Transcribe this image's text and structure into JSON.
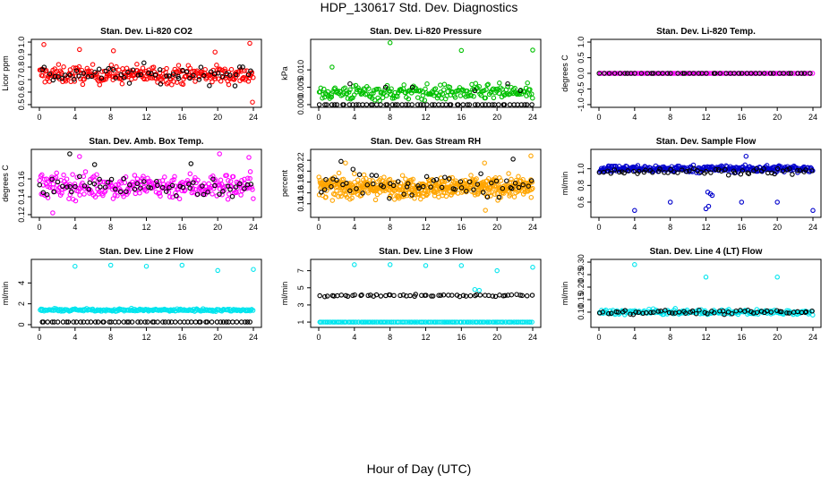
{
  "figure": {
    "title": "HDP_130617  Std. Dev. Diagnostics",
    "xlabel": "Hour of Day (UTC)"
  },
  "chart_data": [
    {
      "type": "scatter",
      "title": "Stan. Dev. Li-820 CO2",
      "ylabel": "Licor ppm",
      "xlim": [
        0,
        24
      ],
      "ylim": [
        0.5,
        1.0
      ],
      "xticks": [
        "0",
        "4",
        "8",
        "12",
        "16",
        "20",
        "24"
      ],
      "yticks": [
        "0.5",
        "0.6",
        "0.7",
        "0.8",
        "0.9",
        "1.0"
      ],
      "series": [
        {
          "color": "#ff0000",
          "baseline": 0.74,
          "spread": 0.07,
          "n": 260,
          "outliers": [
            [
              0.5,
              0.98
            ],
            [
              23.6,
              0.99
            ],
            [
              4.5,
              0.94
            ],
            [
              8.3,
              0.93
            ],
            [
              19.7,
              0.92
            ],
            [
              23.9,
              0.52
            ]
          ]
        },
        {
          "color": "#000000",
          "baseline": 0.74,
          "spread": 0.07,
          "n": 60,
          "outliers": []
        }
      ]
    },
    {
      "type": "scatter",
      "title": "Stan. Dev. Li-820 Pressure",
      "ylabel": "kPa",
      "xlim": [
        0,
        24
      ],
      "ylim": [
        0,
        0.018
      ],
      "xticks": [
        "0",
        "4",
        "8",
        "12",
        "16",
        "20",
        "24"
      ],
      "yticks": [
        "0.000",
        "0.005",
        "0.010"
      ],
      "series": [
        {
          "color": "#00c000",
          "baseline": 0.0035,
          "spread": 0.0022,
          "n": 230,
          "outliers": [
            [
              8.0,
              0.0178
            ],
            [
              16.0,
              0.0156
            ],
            [
              24.0,
              0.0157
            ],
            [
              1.5,
              0.0108
            ]
          ]
        },
        {
          "color": "#000000",
          "baseline": 0.0,
          "spread": 0.0,
          "n": 60,
          "outliers": [
            [
              3.5,
              0.006
            ],
            [
              7.5,
              0.005
            ],
            [
              10.5,
              0.005
            ],
            [
              17.5,
              0.004
            ],
            [
              21.2,
              0.006
            ],
            [
              22.6,
              0.004
            ]
          ]
        }
      ]
    },
    {
      "type": "scatter",
      "title": "Stan. Dev. Li-820 Temp.",
      "ylabel": "degrees C",
      "xlim": [
        0,
        24
      ],
      "ylim": [
        -1.0,
        1.0
      ],
      "xticks": [
        "0",
        "4",
        "8",
        "12",
        "16",
        "20",
        "24"
      ],
      "yticks": [
        "-1.0",
        "-0.5",
        "0.0",
        "0.5",
        "1.0"
      ],
      "series": [
        {
          "color": "#ff00ff",
          "baseline": 0.0,
          "spread": 0.0,
          "n": 120,
          "outliers": []
        },
        {
          "color": "#000000",
          "baseline": 0.0,
          "spread": 0.0,
          "n": 48,
          "outliers": []
        }
      ]
    },
    {
      "type": "scatter",
      "title": "Stan. Dev. Amb. Box Temp.",
      "ylabel": "degrees C",
      "xlim": [
        0,
        24
      ],
      "ylim": [
        0.12,
        0.19
      ],
      "xticks": [
        "0",
        "4",
        "8",
        "12",
        "16",
        "20",
        "24"
      ],
      "yticks": [
        "0.12",
        "0.14",
        "0.16"
      ],
      "series": [
        {
          "color": "#ff00ff",
          "baseline": 0.152,
          "spread": 0.014,
          "n": 280,
          "outliers": [
            [
              20.2,
              0.188
            ],
            [
              23.5,
              0.184
            ],
            [
              1.5,
              0.122
            ],
            [
              4.5,
              0.185
            ]
          ]
        },
        {
          "color": "#000000",
          "baseline": 0.152,
          "spread": 0.012,
          "n": 60,
          "outliers": [
            [
              3.4,
              0.188
            ],
            [
              6.2,
              0.176
            ],
            [
              17.0,
              0.177
            ]
          ]
        }
      ]
    },
    {
      "type": "scatter",
      "title": "Stan. Dev. Gas Stream RH",
      "ylabel": "percent",
      "xlim": [
        0,
        24
      ],
      "ylim": [
        0.12,
        0.235
      ],
      "xticks": [
        "0",
        "4",
        "8",
        "12",
        "16",
        "20",
        "24"
      ],
      "yticks": [
        "0.14",
        "0.16",
        "0.18",
        "0.20",
        "0.22"
      ],
      "series": [
        {
          "color": "#ffa500",
          "baseline": 0.17,
          "spread": 0.018,
          "n": 520,
          "outliers": [
            [
              23.8,
              0.228
            ],
            [
              3.0,
              0.215
            ],
            [
              18.6,
              0.215
            ],
            [
              18.7,
              0.128
            ]
          ]
        },
        {
          "color": "#000000",
          "baseline": 0.175,
          "spread": 0.02,
          "n": 60,
          "outliers": [
            [
              2.5,
              0.218
            ],
            [
              21.8,
              0.222
            ]
          ]
        }
      ]
    },
    {
      "type": "scatter",
      "title": "Stan. Dev. Sample Flow",
      "ylabel": "ml/min",
      "xlim": [
        0,
        24
      ],
      "ylim": [
        0.45,
        1.2
      ],
      "xticks": [
        "0",
        "4",
        "8",
        "12",
        "16",
        "20",
        "24"
      ],
      "yticks": [
        "0.6",
        "0.8",
        "1.0"
      ],
      "series": [
        {
          "color": "#0000cc",
          "baseline": 1.0,
          "spread": 0.04,
          "n": 300,
          "outliers": [
            [
              4.0,
              0.5
            ],
            [
              8.0,
              0.6
            ],
            [
              12.0,
              0.52
            ],
            [
              12.3,
              0.55
            ],
            [
              12.5,
              0.7
            ],
            [
              12.7,
              0.68
            ],
            [
              16.0,
              0.6
            ],
            [
              16.5,
              1.15
            ],
            [
              20.0,
              0.6
            ],
            [
              24.0,
              0.5
            ],
            [
              12.2,
              0.72
            ]
          ]
        },
        {
          "color": "#000000",
          "baseline": 0.97,
          "spread": 0.035,
          "n": 60,
          "outliers": []
        }
      ]
    },
    {
      "type": "scatter",
      "title": "Stan. Dev. Line 2 Flow",
      "ylabel": "ml/min",
      "xlim": [
        0,
        24
      ],
      "ylim": [
        0,
        6.0
      ],
      "xticks": [
        "0",
        "4",
        "8",
        "12",
        "16",
        "20",
        "24"
      ],
      "yticks": [
        "0",
        "2",
        "4"
      ],
      "series": [
        {
          "color": "#00e5ee",
          "baseline": 1.4,
          "spread": 0.12,
          "n": 220,
          "outliers": [
            [
              4.0,
              5.6
            ],
            [
              8.0,
              5.7
            ],
            [
              12.0,
              5.6
            ],
            [
              16.0,
              5.7
            ],
            [
              20.0,
              5.2
            ],
            [
              24.0,
              5.3
            ]
          ]
        },
        {
          "color": "#000000",
          "baseline": 0.25,
          "spread": 0.0,
          "n": 60,
          "outliers": []
        }
      ]
    },
    {
      "type": "scatter",
      "title": "Stan. Dev. Line 3 Flow",
      "ylabel": "ml/min",
      "xlim": [
        0,
        24
      ],
      "ylim": [
        0.7,
        8.0
      ],
      "xticks": [
        "0",
        "4",
        "8",
        "12",
        "16",
        "20",
        "24"
      ],
      "yticks": [
        "1",
        "3",
        "5",
        "7"
      ],
      "series": [
        {
          "color": "#00e5ee",
          "baseline": 1.0,
          "spread": 0.0,
          "n": 150,
          "outliers": [
            [
              4.0,
              7.7
            ],
            [
              8.0,
              7.7
            ],
            [
              12.0,
              7.6
            ],
            [
              16.0,
              7.6
            ],
            [
              20.0,
              7.0
            ],
            [
              24.0,
              7.4
            ],
            [
              17.5,
              4.8
            ],
            [
              18.0,
              4.7
            ]
          ]
        },
        {
          "color": "#000000",
          "baseline": 4.1,
          "spread": 0.12,
          "n": 60,
          "outliers": []
        }
      ]
    },
    {
      "type": "scatter",
      "title": "Stan. Dev. Line 4 (LT) Flow",
      "ylabel": "ml/min",
      "xlim": [
        0,
        24
      ],
      "ylim": [
        0.05,
        0.3
      ],
      "xticks": [
        "0",
        "4",
        "8",
        "12",
        "16",
        "20",
        "24"
      ],
      "yticks": [
        "0.10",
        "0.15",
        "0.20",
        "0.25",
        "0.30"
      ],
      "series": [
        {
          "color": "#00e5ee",
          "baseline": 0.1,
          "spread": 0.01,
          "n": 200,
          "outliers": [
            [
              4.0,
              0.29
            ],
            [
              12.0,
              0.24
            ],
            [
              20.0,
              0.24
            ]
          ]
        },
        {
          "color": "#000000",
          "baseline": 0.1,
          "spread": 0.008,
          "n": 60,
          "outliers": []
        }
      ]
    }
  ]
}
